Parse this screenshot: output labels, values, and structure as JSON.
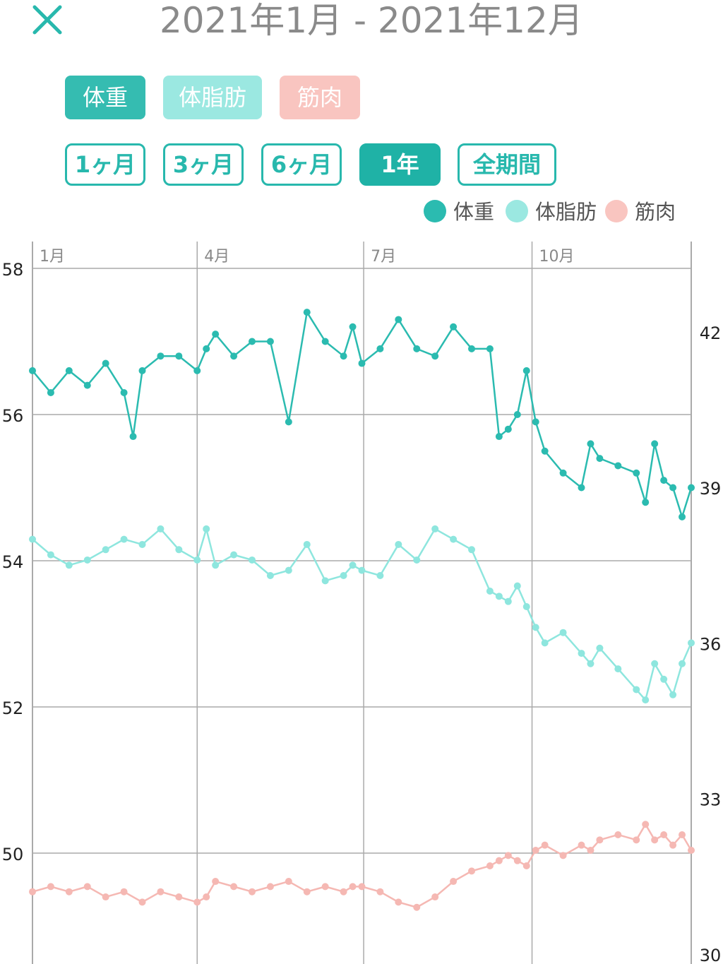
{
  "header": {
    "close_icon": "close-icon",
    "title": "2021年1月 - 2021年12月"
  },
  "metrics": [
    {
      "label": "体重",
      "color": "#35bcb1",
      "active": true
    },
    {
      "label": "体脂肪",
      "color": "#9be8e1",
      "active": false
    },
    {
      "label": "筋肉",
      "color": "#f9c5c0",
      "active": false
    }
  ],
  "ranges": [
    {
      "label": "1ヶ月",
      "active": false
    },
    {
      "label": "3ヶ月",
      "active": false
    },
    {
      "label": "6ヶ月",
      "active": false
    },
    {
      "label": "1年",
      "active": true
    },
    {
      "label": "全期間",
      "active": false
    }
  ],
  "colors": {
    "accent": "#1fb2a6",
    "weight": "#2bbbb0",
    "fat": "#8ee6de",
    "muscle": "#f5b8b3",
    "grid": "#aaaaaa"
  },
  "chart_data": {
    "type": "line",
    "title": "",
    "x_labels": [
      "1月",
      "4月",
      "7月",
      "10月"
    ],
    "x_label_days": [
      0,
      90,
      181,
      273
    ],
    "x_range_days": [
      0,
      360
    ],
    "left_axis": {
      "ticks": [
        58,
        56,
        54,
        52,
        50
      ],
      "range": [
        48.5,
        58
      ]
    },
    "right_axis": {
      "ticks": [
        42,
        39,
        36,
        33,
        30
      ],
      "range": [
        30,
        43.25
      ]
    },
    "legend": [
      "体重",
      "体脂肪",
      "筋肉"
    ],
    "series": [
      {
        "name": "体重",
        "axis": "left",
        "day": [
          0,
          10,
          20,
          30,
          40,
          50,
          55,
          60,
          70,
          80,
          90,
          95,
          100,
          110,
          120,
          130,
          140,
          150,
          160,
          170,
          175,
          180,
          190,
          200,
          210,
          220,
          230,
          240,
          250,
          255,
          260,
          265,
          270,
          275,
          280,
          290,
          300,
          305,
          310,
          320,
          330,
          335,
          340,
          345,
          350,
          355,
          360
        ],
        "values": [
          56.6,
          56.3,
          56.6,
          56.4,
          56.7,
          56.3,
          55.7,
          56.6,
          56.8,
          56.8,
          56.6,
          56.9,
          57.1,
          56.8,
          57.0,
          57.0,
          55.9,
          57.4,
          57.0,
          56.8,
          57.2,
          56.7,
          56.9,
          57.3,
          56.9,
          56.8,
          57.2,
          56.9,
          56.9,
          55.7,
          55.8,
          56.0,
          56.6,
          55.9,
          55.5,
          55.2,
          55.0,
          55.6,
          55.4,
          55.3,
          55.2,
          54.8,
          55.6,
          55.1,
          55.0,
          54.6,
          55.0
        ]
      },
      {
        "name": "体脂肪",
        "axis": "right",
        "day": [
          0,
          10,
          20,
          30,
          40,
          50,
          60,
          70,
          80,
          90,
          95,
          100,
          110,
          120,
          130,
          140,
          150,
          160,
          170,
          175,
          180,
          190,
          200,
          210,
          220,
          230,
          240,
          250,
          255,
          260,
          265,
          270,
          275,
          280,
          290,
          300,
          305,
          310,
          320,
          330,
          335,
          340,
          345,
          350,
          355,
          360
        ],
        "values": [
          38.0,
          37.7,
          37.5,
          37.6,
          37.8,
          38.0,
          37.9,
          38.2,
          37.8,
          37.6,
          38.2,
          37.5,
          37.7,
          37.6,
          37.3,
          37.4,
          37.9,
          37.2,
          37.3,
          37.5,
          37.4,
          37.3,
          37.9,
          37.6,
          38.2,
          38.0,
          37.8,
          37.0,
          36.9,
          36.8,
          37.1,
          36.7,
          36.3,
          36.0,
          36.2,
          35.8,
          35.6,
          35.9,
          35.5,
          35.1,
          34.9,
          35.6,
          35.3,
          35.0,
          35.6,
          36.0
        ]
      },
      {
        "name": "筋肉",
        "axis": "right",
        "day": [
          0,
          10,
          20,
          30,
          40,
          50,
          60,
          70,
          80,
          90,
          95,
          100,
          110,
          120,
          130,
          140,
          150,
          160,
          170,
          175,
          180,
          190,
          200,
          210,
          220,
          230,
          240,
          250,
          255,
          260,
          265,
          270,
          275,
          280,
          290,
          300,
          305,
          310,
          320,
          330,
          335,
          340,
          345,
          350,
          355,
          360
        ],
        "values": [
          31.2,
          31.3,
          31.2,
          31.3,
          31.1,
          31.2,
          31.0,
          31.2,
          31.1,
          31.0,
          31.1,
          31.4,
          31.3,
          31.2,
          31.3,
          31.4,
          31.2,
          31.3,
          31.2,
          31.3,
          31.3,
          31.2,
          31.0,
          30.9,
          31.1,
          31.4,
          31.6,
          31.7,
          31.8,
          31.9,
          31.8,
          31.7,
          32.0,
          32.1,
          31.9,
          32.1,
          32.0,
          32.2,
          32.3,
          32.2,
          32.5,
          32.2,
          32.3,
          32.1,
          32.3,
          32.0
        ]
      }
    ]
  }
}
